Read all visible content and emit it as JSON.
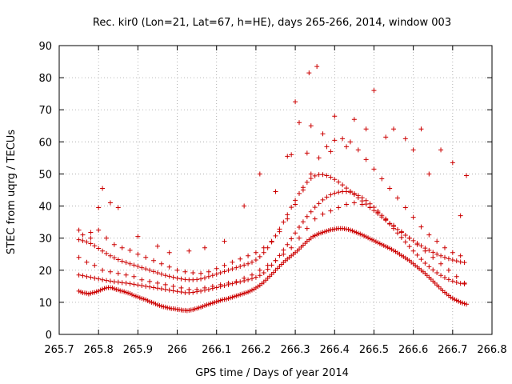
{
  "chart_data": {
    "type": "scatter",
    "title": "Rec. kir0 (Lon=21, Lat=67, h=HE), days 265-266, 2014, window 003",
    "xlabel": "GPS time / Days of year 2014",
    "ylabel": "STEC from uqrg / TECUs",
    "xlim": [
      265.7,
      266.8
    ],
    "ylim": [
      0,
      90
    ],
    "xticks": [
      "265.7",
      "265.8",
      "265.9",
      "266",
      "266.1",
      "266.2",
      "266.3",
      "266.4",
      "266.5",
      "266.6",
      "266.7",
      "266.8"
    ],
    "yticks": [
      "0",
      "10",
      "20",
      "30",
      "40",
      "50",
      "60",
      "70",
      "80",
      "90"
    ],
    "grid": true,
    "marker": "plus",
    "color": "#cc0000",
    "series": [
      {
        "x": [
          265.75,
          265.755,
          265.76,
          265.765,
          265.77,
          265.775,
          265.78,
          265.785,
          265.79,
          265.795,
          265.8,
          265.805,
          265.81,
          265.815,
          265.82,
          265.825,
          265.83,
          265.835,
          265.84,
          265.845,
          265.85,
          265.855,
          265.86,
          265.865,
          265.87,
          265.875,
          265.88,
          265.885,
          265.89,
          265.895,
          265.9,
          265.905,
          265.91,
          265.915,
          265.92,
          265.925,
          265.93,
          265.935,
          265.94,
          265.945,
          265.95,
          265.955,
          265.96,
          265.965,
          265.97,
          265.975,
          265.98,
          265.985,
          265.99,
          265.995,
          266,
          266.005,
          266.01,
          266.015,
          266.02,
          266.025,
          266.03,
          266.035,
          266.04,
          266.045,
          266.05,
          266.055,
          266.06,
          266.065,
          266.07,
          266.075,
          266.08,
          266.085,
          266.09,
          266.095,
          266.1,
          266.105,
          266.11,
          266.115,
          266.12,
          266.125,
          266.13,
          266.135,
          266.14,
          266.145,
          266.15,
          266.155,
          266.16,
          266.165,
          266.17,
          266.175,
          266.18,
          266.185,
          266.19,
          266.195,
          266.2,
          266.205,
          266.21,
          266.215,
          266.22,
          266.225,
          266.23,
          266.235,
          266.24,
          266.245,
          266.25,
          266.255,
          266.26,
          266.265,
          266.27,
          266.275,
          266.28,
          266.285,
          266.29,
          266.295,
          266.3,
          266.305,
          266.31,
          266.315,
          266.32,
          266.325,
          266.33,
          266.335,
          266.34,
          266.345,
          266.35,
          266.355,
          266.36,
          266.365,
          266.37,
          266.375,
          266.38,
          266.385,
          266.39,
          266.395,
          266.4,
          266.405,
          266.41,
          266.415,
          266.42,
          266.425,
          266.43,
          266.435,
          266.44,
          266.445,
          266.45,
          266.455,
          266.46,
          266.465,
          266.47,
          266.475,
          266.48,
          266.485,
          266.49,
          266.495,
          266.5,
          266.505,
          266.51,
          266.515,
          266.52,
          266.525,
          266.53,
          266.535,
          266.54,
          266.545,
          266.55,
          266.555,
          266.56,
          266.565,
          266.57,
          266.575,
          266.58,
          266.585,
          266.59,
          266.595,
          266.6,
          266.605,
          266.61,
          266.615,
          266.62,
          266.625,
          266.63,
          266.635,
          266.64,
          266.645,
          266.65,
          266.655,
          266.66,
          266.665,
          266.67,
          266.675,
          266.68,
          266.685,
          266.69,
          266.695,
          266.7,
          266.705,
          266.71,
          266.715,
          266.72,
          266.725,
          266.73,
          266.735
        ],
        "y": [
          13.5,
          13.2,
          13.0,
          12.9,
          12.8,
          12.6,
          12.8,
          13.0,
          13.1,
          13.3,
          13.5,
          13.8,
          14.1,
          14.3,
          14.5,
          14.6,
          14.6,
          14.5,
          14.2,
          14.0,
          13.9,
          13.6,
          13.5,
          13.3,
          13.1,
          12.9,
          12.7,
          12.4,
          12.1,
          11.9,
          11.7,
          11.4,
          11.2,
          11.0,
          10.8,
          10.5,
          10.2,
          10.0,
          9.8,
          9.5,
          9.2,
          9.0,
          8.8,
          8.6,
          8.5,
          8.3,
          8.2,
          8.0,
          8.0,
          7.9,
          7.8,
          7.7,
          7.6,
          7.5,
          7.5,
          7.4,
          7.5,
          7.6,
          7.7,
          7.9,
          8.1,
          8.3,
          8.5,
          8.7,
          9.0,
          9.2,
          9.4,
          9.6,
          9.8,
          10.0,
          10.2,
          10.4,
          10.6,
          10.8,
          10.9,
          11.0,
          11.2,
          11.4,
          11.6,
          11.8,
          12.0,
          12.2,
          12.4,
          12.6,
          12.8,
          13.0,
          13.2,
          13.5,
          13.8,
          14.1,
          14.5,
          14.9,
          15.3,
          15.8,
          16.3,
          16.9,
          17.5,
          18.1,
          18.7,
          19.3,
          20.0,
          20.6,
          21.2,
          21.8,
          22.4,
          23.0,
          23.5,
          24.0,
          24.5,
          25.0,
          25.5,
          26.0,
          26.6,
          27.2,
          27.8,
          28.4,
          29.0,
          29.5,
          30.0,
          30.5,
          30.8,
          31.1,
          31.4,
          31.6,
          31.8,
          32.0,
          32.2,
          32.4,
          32.6,
          32.7,
          32.8,
          32.9,
          33.0,
          33.0,
          33.0,
          32.9,
          32.8,
          32.7,
          32.5,
          32.3,
          32.0,
          31.8,
          31.5,
          31.3,
          31.0,
          30.7,
          30.4,
          30.1,
          29.8,
          29.5,
          29.2,
          28.9,
          28.6,
          28.3,
          28.0,
          27.7,
          27.4,
          27.1,
          26.8,
          26.5,
          26.1,
          25.8,
          25.4,
          25.0,
          24.6,
          24.2,
          23.8,
          23.4,
          23.0,
          22.5,
          22.0,
          21.5,
          21.0,
          20.5,
          20.0,
          19.5,
          19.0,
          18.4,
          17.8,
          17.2,
          16.6,
          16.0,
          15.4,
          14.8,
          14.2,
          13.6,
          13.1,
          12.6,
          12.1,
          11.6,
          11.2,
          10.9,
          10.6,
          10.3,
          10.0,
          9.8,
          9.6,
          9.4
        ]
      },
      {
        "x": [
          265.75,
          265.76,
          265.77,
          265.78,
          265.79,
          265.8,
          265.81,
          265.82,
          265.83,
          265.84,
          265.85,
          265.86,
          265.87,
          265.88,
          265.89,
          265.9,
          265.91,
          265.92,
          265.93,
          265.94,
          265.95,
          265.96,
          265.97,
          265.98,
          265.99,
          266,
          266.01,
          266.02,
          266.03,
          266.04,
          266.05,
          266.06,
          266.07,
          266.08,
          266.09,
          266.1,
          266.11,
          266.12,
          266.13,
          266.14,
          266.15,
          266.16,
          266.17,
          266.18,
          266.19,
          266.2,
          266.21,
          266.22,
          266.23,
          266.24,
          266.25,
          266.26,
          266.27,
          266.28,
          266.29,
          266.3,
          266.31,
          266.32,
          266.33,
          266.34,
          266.35,
          266.36,
          266.37,
          266.38,
          266.39,
          266.4,
          266.41,
          266.42,
          266.43,
          266.44,
          266.45,
          266.46,
          266.47,
          266.48,
          266.49,
          266.5,
          266.51,
          266.52,
          266.53,
          266.54,
          266.55,
          266.56,
          266.57,
          266.58,
          266.59,
          266.6,
          266.61,
          266.62,
          266.63,
          266.64,
          266.65,
          266.66,
          266.67,
          266.68,
          266.69,
          266.7,
          266.71,
          266.72,
          266.73
        ],
        "y": [
          18.5,
          18.3,
          18.0,
          17.8,
          17.5,
          17.3,
          17.0,
          16.8,
          16.6,
          16.4,
          16.3,
          16.1,
          16.0,
          15.8,
          15.6,
          15.4,
          15.2,
          15.0,
          14.8,
          14.6,
          14.4,
          14.2,
          14.0,
          13.8,
          13.6,
          13.4,
          13.2,
          13.0,
          13.0,
          13.1,
          13.3,
          13.5,
          13.8,
          14.0,
          14.3,
          14.6,
          14.9,
          15.2,
          15.5,
          15.8,
          16.1,
          16.4,
          16.7,
          17.0,
          17.4,
          17.8,
          18.4,
          19.2,
          20.3,
          21.6,
          23.0,
          24.6,
          26.3,
          28.0,
          29.8,
          31.6,
          33.4,
          35.1,
          36.7,
          38.2,
          39.6,
          40.8,
          41.9,
          42.8,
          43.5,
          44.0,
          44.3,
          44.5,
          44.5,
          44.3,
          43.9,
          43.3,
          42.6,
          41.7,
          40.7,
          39.6,
          38.4,
          37.1,
          35.8,
          34.4,
          33.0,
          31.6,
          30.2,
          28.8,
          27.4,
          26.0,
          24.7,
          23.4,
          22.2,
          21.1,
          20.1,
          19.2,
          18.4,
          17.7,
          17.1,
          16.6,
          16.2,
          15.9,
          15.7
        ]
      },
      {
        "x": [
          265.75,
          265.76,
          265.77,
          265.78,
          265.79,
          265.8,
          265.81,
          265.82,
          265.83,
          265.84,
          265.85,
          265.86,
          265.87,
          265.88,
          265.89,
          265.9,
          265.91,
          265.92,
          265.93,
          265.94,
          265.95,
          265.96,
          265.97,
          265.98,
          265.99,
          266,
          266.01,
          266.02,
          266.03,
          266.04,
          266.05,
          266.06,
          266.07,
          266.08,
          266.09,
          266.1,
          266.11,
          266.12,
          266.13,
          266.14,
          266.15,
          266.16,
          266.17,
          266.18,
          266.19,
          266.2,
          266.21,
          266.22,
          266.23,
          266.24,
          266.25,
          266.26,
          266.27,
          266.28,
          266.29,
          266.3,
          266.31,
          266.32,
          266.33,
          266.34,
          266.35,
          266.36,
          266.37,
          266.38,
          266.39,
          266.4,
          266.41,
          266.42,
          266.43,
          266.44,
          266.45,
          266.46,
          266.47,
          266.48,
          266.49,
          266.5,
          266.51,
          266.52,
          266.53,
          266.54,
          266.55,
          266.56,
          266.57,
          266.58,
          266.59,
          266.6,
          266.61,
          266.62,
          266.63,
          266.64,
          266.65,
          266.66,
          266.67,
          266.68,
          266.69,
          266.7,
          266.71,
          266.72,
          266.73
        ],
        "y": [
          29.5,
          29.2,
          28.8,
          28.3,
          27.6,
          26.8,
          26.0,
          25.2,
          24.5,
          23.9,
          23.3,
          22.8,
          22.4,
          22.0,
          21.6,
          21.2,
          20.8,
          20.4,
          20.0,
          19.6,
          19.2,
          18.8,
          18.4,
          18.1,
          17.8,
          17.5,
          17.3,
          17.1,
          17.0,
          17.0,
          17.1,
          17.3,
          17.6,
          18.0,
          18.4,
          18.8,
          19.2,
          19.6,
          20.0,
          20.4,
          20.8,
          21.2,
          21.6,
          22.0,
          22.5,
          23.2,
          24.2,
          25.5,
          27.0,
          28.8,
          30.7,
          32.8,
          35.0,
          37.3,
          39.6,
          41.8,
          43.9,
          45.8,
          47.4,
          48.6,
          49.4,
          49.8,
          49.8,
          49.5,
          49.0,
          48.3,
          47.5,
          46.6,
          45.6,
          44.6,
          43.6,
          42.6,
          41.6,
          40.6,
          39.6,
          38.6,
          37.6,
          36.6,
          35.6,
          34.6,
          33.6,
          32.7,
          31.8,
          30.9,
          30.0,
          29.2,
          28.4,
          27.6,
          26.9,
          26.2,
          25.6,
          25.0,
          24.5,
          24.0,
          23.6,
          23.2,
          22.9,
          22.6,
          22.4
        ]
      },
      {
        "x": [
          265.76,
          265.78,
          265.8,
          265.82,
          265.84,
          265.86,
          265.88,
          265.9,
          265.92,
          265.94,
          265.96,
          265.98,
          266,
          266.02,
          266.04,
          266.06,
          266.08,
          266.1,
          266.12,
          266.14,
          266.16,
          266.18,
          266.2,
          266.22,
          266.24,
          266.26,
          266.28,
          266.3,
          266.32,
          266.34,
          266.36,
          266.38,
          266.4,
          266.42,
          266.44,
          266.46,
          266.48,
          266.5,
          266.52,
          266.54,
          266.56,
          266.58,
          266.6,
          266.62,
          266.64,
          266.66,
          266.68,
          266.7,
          266.72
        ],
        "y": [
          31.0,
          31.8,
          32.5,
          30.0,
          28.0,
          27.0,
          26.2,
          25.0,
          24.0,
          23.0,
          22.0,
          21.0,
          20.0,
          19.5,
          19.2,
          19.0,
          19.5,
          20.5,
          21.5,
          22.5,
          23.5,
          24.5,
          25.5,
          27.0,
          29.0,
          32.0,
          36.0,
          40.5,
          45.0,
          50.0,
          55.0,
          58.5,
          60.5,
          61.0,
          60.0,
          57.5,
          54.5,
          51.5,
          48.5,
          45.5,
          42.5,
          39.5,
          36.5,
          33.5,
          31.0,
          29.0,
          27.0,
          25.5,
          24.5
        ]
      },
      {
        "x": [
          265.75,
          265.78,
          265.8,
          265.81,
          265.83,
          265.85,
          265.9,
          265.95,
          265.98,
          266.03,
          266.07,
          266.12,
          266.17,
          266.21,
          266.25,
          266.28,
          266.29,
          266.3,
          266.31,
          266.33,
          266.335,
          266.34,
          266.355,
          266.37,
          266.39,
          266.4,
          266.43,
          266.45,
          266.48,
          266.5,
          266.53,
          266.55,
          266.58,
          266.6,
          266.62,
          266.64,
          266.67,
          266.7,
          266.72,
          266.735
        ],
        "y": [
          32.5,
          30.0,
          39.5,
          45.5,
          41.0,
          39.5,
          30.5,
          27.5,
          25.5,
          26.0,
          27.0,
          29.0,
          40.0,
          50.0,
          44.5,
          55.5,
          56.0,
          72.5,
          66.0,
          56.5,
          81.5,
          65.0,
          83.5,
          62.5,
          57.0,
          68.0,
          58.5,
          67.0,
          64.0,
          76.0,
          61.5,
          64.0,
          61.0,
          57.5,
          64.0,
          50.0,
          57.5,
          53.5,
          37.0,
          49.5
        ]
      },
      {
        "x": [
          265.75,
          265.77,
          265.79,
          265.81,
          265.83,
          265.85,
          265.87,
          265.89,
          265.91,
          265.93,
          265.95,
          265.97,
          265.99,
          266.01,
          266.03,
          266.05,
          266.07,
          266.09,
          266.11,
          266.13,
          266.15,
          266.17,
          266.19,
          266.21,
          266.23,
          266.25,
          266.27,
          266.29,
          266.31,
          266.33,
          266.35,
          266.37,
          266.39,
          266.41,
          266.43,
          266.45,
          266.47,
          266.49,
          266.51,
          266.53,
          266.55,
          266.57,
          266.59,
          266.61,
          266.63,
          266.65,
          266.67,
          266.69,
          266.71,
          266.73
        ],
        "y": [
          24.0,
          22.5,
          21.5,
          20.0,
          19.5,
          19.0,
          18.5,
          18.0,
          17.0,
          16.5,
          16.0,
          15.5,
          15.0,
          14.5,
          14.0,
          14.0,
          14.5,
          15.0,
          15.5,
          16.0,
          16.5,
          17.5,
          18.5,
          20.0,
          21.5,
          23.0,
          25.0,
          27.0,
          30.0,
          33.0,
          36.0,
          37.5,
          38.5,
          39.5,
          40.5,
          41.0,
          40.5,
          39.5,
          38.0,
          36.0,
          34.0,
          32.0,
          30.0,
          28.0,
          26.0,
          24.0,
          22.0,
          20.0,
          18.0,
          16.0
        ]
      }
    ]
  }
}
